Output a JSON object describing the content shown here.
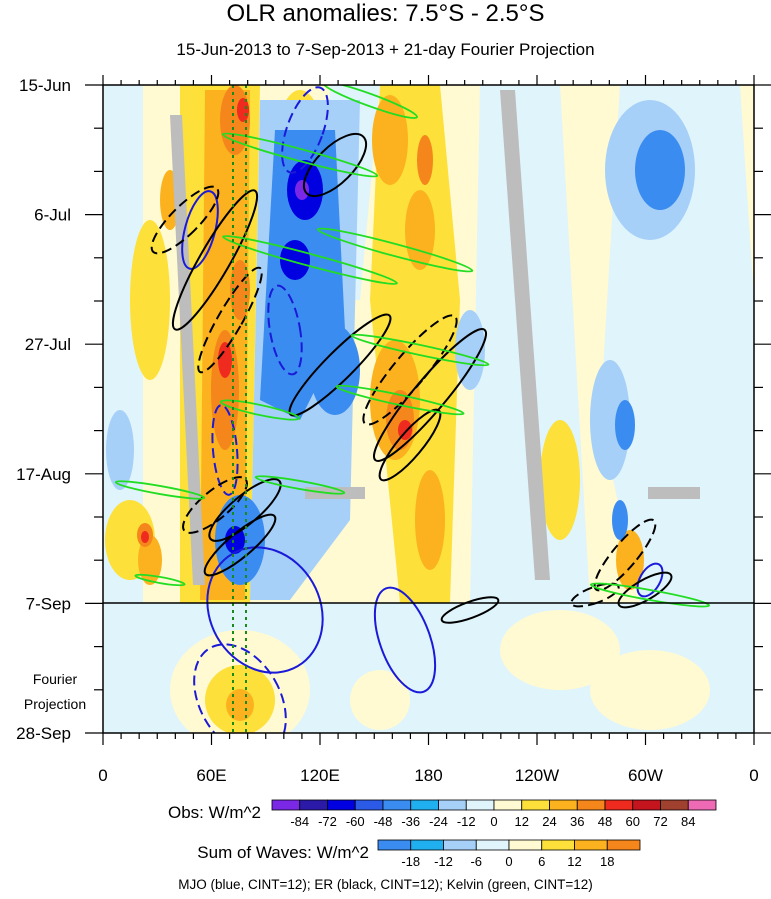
{
  "chart_data": {
    "type": "heatmap",
    "title": "OLR anomalies: 7.5°S - 2.5°S",
    "subtitle": "15-Jun-2013 to 7-Sep-2013 + 21-day Fourier Projection",
    "x_ticks": [
      "0",
      "60E",
      "120E",
      "180",
      "120W",
      "60W",
      "0"
    ],
    "y_ticks": [
      "15-Jun",
      "6-Jul",
      "27-Jul",
      "17-Aug",
      "7-Sep",
      "28-Sep"
    ],
    "projection_label": [
      "Fourier",
      "Projection"
    ],
    "obs_colorbar": {
      "label": "Obs: W/m^2",
      "levels": [
        "-84",
        "-72",
        "-60",
        "-48",
        "-36",
        "-24",
        "-12",
        "0",
        "12",
        "24",
        "36",
        "48",
        "60",
        "72",
        "84"
      ],
      "colors": [
        "#7a28e6",
        "#2b1aa8",
        "#0000e0",
        "#2a5ae6",
        "#3a8cf0",
        "#20b0f0",
        "#a6d0f8",
        "#e0f4fc",
        "#fffad2",
        "#fde03a",
        "#fbb21e",
        "#f5861c",
        "#ef2a1e",
        "#c4141e",
        "#a0402e",
        "#ee6ab4"
      ]
    },
    "waves_colorbar": {
      "label": "Sum of Waves: W/m^2",
      "levels": [
        "-18",
        "-12",
        "-6",
        "0",
        "6",
        "12",
        "18"
      ],
      "colors": [
        "#3a8cf0",
        "#20b0f0",
        "#a6d0f8",
        "#e0f4fc",
        "#fffad2",
        "#fde03a",
        "#fbb21e",
        "#f5861c"
      ]
    },
    "contours_caption": "MJO (blue, CINT=12); ER (black, CINT=12); Kelvin (green, CINT=12)",
    "mjo_color": "#1a1ad8",
    "er_color": "#000000",
    "kelvin_color": "#22dd22",
    "land_color": "#bdbdbd"
  }
}
